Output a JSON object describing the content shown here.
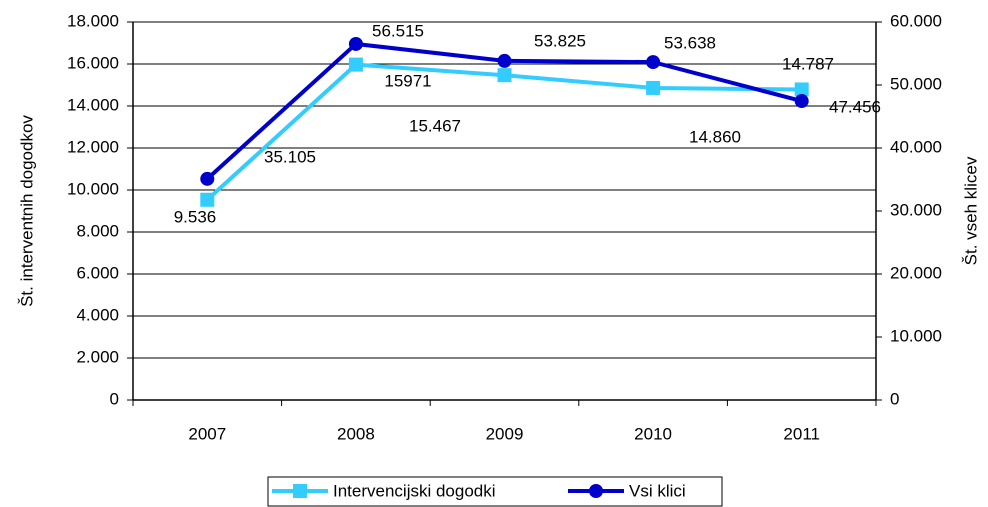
{
  "chart_data": {
    "type": "line",
    "categories": [
      "2007",
      "2008",
      "2009",
      "2010",
      "2011"
    ],
    "series": [
      {
        "name": "Intervencijski dogodki",
        "color": "#33ccff",
        "values": [
          9536,
          15971,
          15467,
          14860,
          14787
        ],
        "value_labels": [
          "9.536",
          "15971",
          "15.467",
          "14.860",
          "14.787"
        ]
      },
      {
        "name": "Vsi klici",
        "color": "#0000cc",
        "axis": "y2",
        "values": [
          35105,
          56515,
          53825,
          53638,
          47456
        ],
        "value_labels": [
          "35.105",
          "56.515",
          "53.825",
          "53.638",
          "47.456"
        ]
      }
    ],
    "ylabel": "Št. interventnih dogodkov",
    "y2label": "Št. vseh klicev",
    "ylim": [
      0,
      18000
    ],
    "yticks": [
      0,
      {
        "value": 2000,
        "label": "2.000"
      },
      {
        "value": 4000,
        "label": "4.000"
      },
      {
        "value": 6000,
        "label": "6.000"
      },
      {
        "value": 8000,
        "label": "8.000"
      },
      {
        "value": 10000,
        "label": "10.000"
      },
      {
        "value": 12000,
        "label": "12.000"
      },
      {
        "value": 14000,
        "label": "14.000"
      },
      {
        "value": 16000,
        "label": "16.000"
      },
      {
        "value": 18000,
        "label": "18.000"
      }
    ],
    "y2lim": [
      0,
      60000
    ],
    "y2ticks": [
      0,
      {
        "value": 10000,
        "label": "10.000"
      },
      {
        "value": 20000,
        "label": "20.000"
      },
      {
        "value": 30000,
        "label": "30.000"
      },
      {
        "value": 40000,
        "label": "40.000"
      },
      {
        "value": 50000,
        "label": "50.000"
      },
      {
        "value": 60000,
        "label": "60.000"
      }
    ],
    "grid": true,
    "legend": "bottom"
  }
}
